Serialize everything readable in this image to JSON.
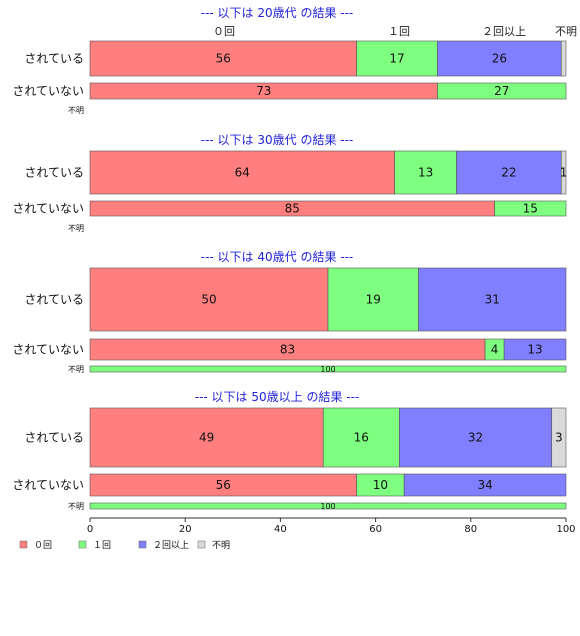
{
  "chart_data": {
    "type": "bar",
    "orientation": "horizontal",
    "stacked": "percent",
    "xlim": [
      0,
      100
    ],
    "xticks": [
      "0",
      "20",
      "40",
      "60",
      "80",
      "100"
    ],
    "category_labels_top": [
      "０回",
      "１回",
      "２回以上",
      "不明"
    ],
    "legend": {
      "placement": "bottom-left",
      "entries": [
        {
          "name": "０回",
          "color": "#ff7f7f"
        },
        {
          "name": "１回",
          "color": "#7fff7f"
        },
        {
          "name": "２回以上",
          "color": "#7f7fff"
        },
        {
          "name": "不明",
          "color": "#d9d9d9"
        }
      ]
    },
    "panels": [
      {
        "title": "--- 以下は 20歳代 の結果 ---",
        "rows": [
          {
            "label": "されている",
            "values": [
              56,
              17,
              26,
              1
            ],
            "labels": [
              "56",
              "17",
              "26",
              ""
            ]
          },
          {
            "label": "されていない",
            "values": [
              73,
              27,
              0,
              0
            ],
            "labels": [
              "73",
              "27",
              "",
              ""
            ]
          },
          {
            "label": "不明",
            "values": [],
            "labels": [],
            "empty": true
          }
        ]
      },
      {
        "title": "--- 以下は 30歳代 の結果 ---",
        "rows": [
          {
            "label": "されている",
            "values": [
              64,
              13,
              22,
              1
            ],
            "labels": [
              "64",
              "13",
              "22",
              "1"
            ]
          },
          {
            "label": "されていない",
            "values": [
              85,
              15,
              0,
              0
            ],
            "labels": [
              "85",
              "15",
              "",
              ""
            ]
          },
          {
            "label": "不明",
            "values": [],
            "labels": [],
            "empty": true
          }
        ]
      },
      {
        "title": "--- 以下は 40歳代 の結果 ---",
        "rows": [
          {
            "label": "されている",
            "values": [
              50,
              19,
              31,
              0
            ],
            "labels": [
              "50",
              "19",
              "31",
              ""
            ]
          },
          {
            "label": "されていない",
            "values": [
              83,
              4,
              13,
              0
            ],
            "labels": [
              "83",
              "4",
              "13",
              ""
            ]
          },
          {
            "label": "不明",
            "values": [
              0,
              100,
              0,
              0
            ],
            "labels": [
              "",
              "100",
              "",
              ""
            ]
          }
        ]
      },
      {
        "title": "--- 以下は 50歳以上 の結果 ---",
        "rows": [
          {
            "label": "されている",
            "values": [
              49,
              16,
              32,
              3
            ],
            "labels": [
              "49",
              "16",
              "32",
              "3"
            ]
          },
          {
            "label": "されていない",
            "values": [
              56,
              10,
              34,
              0
            ],
            "labels": [
              "56",
              "10",
              "34",
              ""
            ]
          },
          {
            "label": "不明",
            "values": [
              0,
              100,
              0,
              0
            ],
            "labels": [
              "",
              "100",
              "",
              ""
            ]
          }
        ]
      }
    ],
    "colors": {
      "title": "#2222dd",
      "segments": [
        "#ff7f7f",
        "#7fff7f",
        "#7f7fff",
        "#d9d9d9"
      ],
      "border": "#555555"
    }
  }
}
